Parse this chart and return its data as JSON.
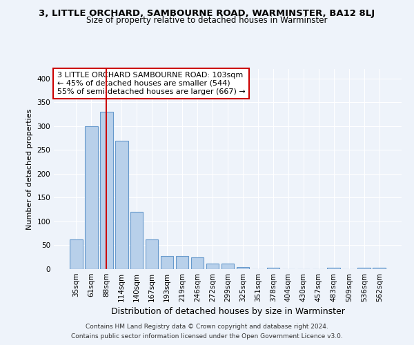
{
  "title_line1": "3, LITTLE ORCHARD, SAMBOURNE ROAD, WARMINSTER, BA12 8LJ",
  "title_line2": "Size of property relative to detached houses in Warminster",
  "xlabel": "Distribution of detached houses by size in Warminster",
  "ylabel": "Number of detached properties",
  "categories": [
    "35sqm",
    "61sqm",
    "88sqm",
    "114sqm",
    "140sqm",
    "167sqm",
    "193sqm",
    "219sqm",
    "246sqm",
    "272sqm",
    "299sqm",
    "325sqm",
    "351sqm",
    "378sqm",
    "404sqm",
    "430sqm",
    "457sqm",
    "483sqm",
    "509sqm",
    "536sqm",
    "562sqm"
  ],
  "values": [
    62,
    300,
    330,
    270,
    120,
    63,
    27,
    27,
    24,
    12,
    12,
    4,
    0,
    3,
    0,
    0,
    0,
    3,
    0,
    3,
    3
  ],
  "bar_color": "#b8d0ea",
  "bar_edge_color": "#6699cc",
  "vline_x": 2,
  "vline_color": "#cc0000",
  "ylim": [
    0,
    420
  ],
  "yticks": [
    0,
    50,
    100,
    150,
    200,
    250,
    300,
    350,
    400
  ],
  "annotation_box_text": "3 LITTLE ORCHARD SAMBOURNE ROAD: 103sqm\n← 45% of detached houses are smaller (544)\n55% of semi-detached houses are larger (667) →",
  "footnote1": "Contains HM Land Registry data © Crown copyright and database right 2024.",
  "footnote2": "Contains public sector information licensed under the Open Government Licence v3.0.",
  "background_color": "#eef3fa",
  "plot_bg_color": "#eef3fa",
  "grid_color": "#ffffff",
  "title1_fontsize": 9.5,
  "title2_fontsize": 8.5,
  "ylabel_fontsize": 8,
  "xlabel_fontsize": 9,
  "tick_fontsize": 7.5,
  "annot_fontsize": 8
}
